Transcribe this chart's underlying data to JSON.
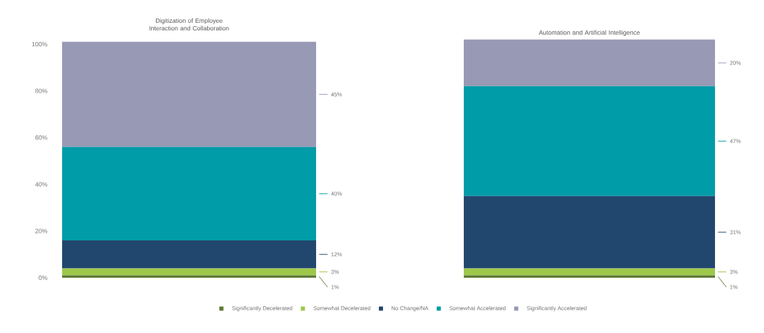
{
  "chart_data": [
    {
      "type": "bar",
      "stacked": true,
      "title": "Digitization of Employee Interaction and Collaboration",
      "categories": [
        null
      ],
      "ylim": [
        0,
        102
      ],
      "yticks": [
        {
          "value": 0,
          "label": "0%"
        },
        {
          "value": 20,
          "label": "20%"
        },
        {
          "value": 40,
          "label": "40%"
        },
        {
          "value": 60,
          "label": "60%"
        },
        {
          "value": 80,
          "label": "80%"
        },
        {
          "value": 100,
          "label": "100%"
        }
      ],
      "legend": "bottom",
      "series": [
        {
          "name": "Significantly Decelerated",
          "color": "#5f7a36",
          "values": [
            1
          ],
          "value_labels": [
            "1%"
          ]
        },
        {
          "name": "Somewhat Decelerated",
          "color": "#9dc84a",
          "values": [
            3
          ],
          "value_labels": [
            "3%"
          ]
        },
        {
          "name": "No Change/NA",
          "color": "#22476e",
          "values": [
            12
          ],
          "value_labels": [
            "12%"
          ]
        },
        {
          "name": "Somewhat Accelerated",
          "color": "#009ca8",
          "values": [
            40
          ],
          "value_labels": [
            "40%"
          ]
        },
        {
          "name": "Significantly Accelerated",
          "color": "#9799b5",
          "values": [
            45
          ],
          "value_labels": [
            "45%"
          ]
        }
      ]
    },
    {
      "type": "bar",
      "stacked": true,
      "title": "Automation and Artificial Intelligence",
      "categories": [
        null
      ],
      "series": [
        {
          "color": "#5f7a36",
          "values": [
            1
          ],
          "value_labels": [
            "1%"
          ]
        },
        {
          "color": "#9dc84a",
          "values": [
            3
          ],
          "value_labels": [
            "3%"
          ]
        },
        {
          "color": "#22476e",
          "values": [
            31
          ],
          "value_labels": [
            "31%"
          ]
        },
        {
          "color": "#009ca8",
          "values": [
            47
          ],
          "value_labels": [
            "47%"
          ]
        },
        {
          "color": "#9799b5",
          "values": [
            20
          ],
          "value_labels": [
            "20%"
          ]
        }
      ]
    }
  ]
}
